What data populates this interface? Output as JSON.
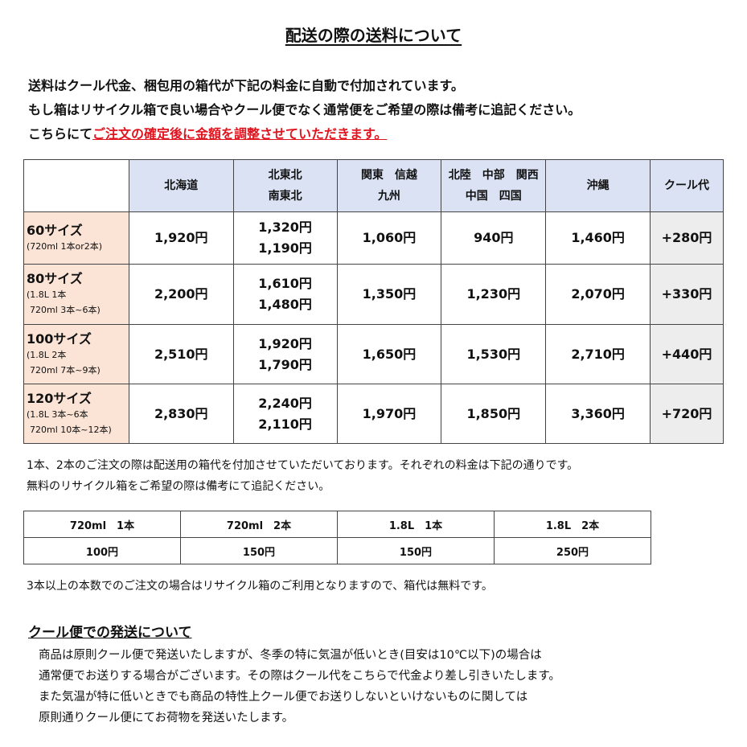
{
  "title": "配送の際の送料について",
  "intro": [
    "送料はクール代金、梱包用の箱代が下記の料金に自動で付加されています。",
    "もし箱はリサイクル箱で良い場合やクール便でなく通常便をご希望の際は備考に追記ください。"
  ],
  "intro3": {
    "plain": "こちらにて",
    "red": "ご注文の確定後に金額を調整させていただきます。"
  },
  "table": {
    "headers": [
      [
        "北海道"
      ],
      [
        "北東北",
        "南東北"
      ],
      [
        "関東　信越",
        "九州"
      ],
      [
        "北陸　中部　関西",
        "中国　四国"
      ],
      [
        "沖縄"
      ],
      [
        "クール代"
      ]
    ],
    "rows": [
      {
        "size": "60サイズ",
        "note": [
          "(720ml 1本or2本)"
        ],
        "prices": [
          "1,920円",
          [
            "1,320円",
            "1,190円"
          ],
          "1,060円",
          "940円",
          "1,460円"
        ],
        "cool": "+280円"
      },
      {
        "size": "80サイズ",
        "note": [
          "(1.8L 1本",
          "720ml 3本~6本)"
        ],
        "prices": [
          "2,200円",
          [
            "1,610円",
            "1,480円"
          ],
          "1,350円",
          "1,230円",
          "2,070円"
        ],
        "cool": "+330円"
      },
      {
        "size": "100サイズ",
        "note": [
          "(1.8L 2本",
          "720ml 7本~9本)"
        ],
        "prices": [
          "2,510円",
          [
            "1,920円",
            "1,790円"
          ],
          "1,650円",
          "1,530円",
          "2,710円"
        ],
        "cool": "+440円"
      },
      {
        "size": "120サイズ",
        "note": [
          "(1.8L 3本~6本",
          "720ml 10本~12本)"
        ],
        "prices": [
          "2,830円",
          [
            "2,240円",
            "2,110円"
          ],
          "1,970円",
          "1,850円",
          "3,360円"
        ],
        "cool": "+720円"
      }
    ],
    "colors": {
      "header": "#dae2f3",
      "size": "#fbe4d6",
      "cool": "#ededed"
    }
  },
  "box_note": [
    "1本、2本のご注文の際は配送用の箱代を付加させていただいております。それぞれの料金は下記の通りです。",
    "無料のリサイクル箱をご希望の際は備考にて追記ください。"
  ],
  "box_table": {
    "headers": [
      "720ml　1本",
      "720ml　2本",
      "1.8L　1本",
      "1.8L　2本"
    ],
    "values": [
      "100円",
      "150円",
      "150円",
      "250円"
    ]
  },
  "free_note": "3本以上の本数でのご注文の場合はリサイクル箱のご利用となりますので、箱代は無料です。",
  "cool_section": {
    "heading": "クール便での発送について",
    "lines": [
      "商品は原則クール便で発送いたしますが、冬季の特に気温が低いとき(目安は10℃以下)の場合は",
      "通常便でお送りする場合がございます。その際はクール代をこちらで代金より差し引きいたします。",
      "また気温が特に低いときでも商品の特性上クール便でお送りしないといけないものに関しては",
      "原則通りクール便にてお荷物を発送いたします。"
    ]
  }
}
